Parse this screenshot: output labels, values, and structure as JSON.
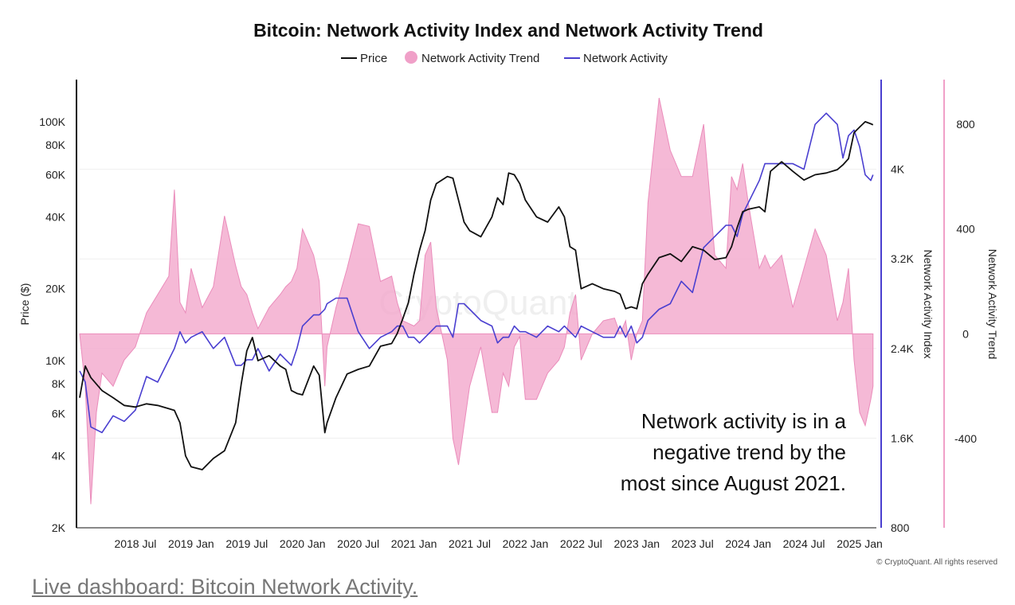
{
  "chart_data": {
    "type": "line",
    "title": "Bitcoin: Network Activity Index and Network Activity Trend",
    "legend": {
      "placement": "top-center",
      "items": [
        {
          "name": "Price",
          "symbol": "line",
          "color": "#111111"
        },
        {
          "name": "Network Activity Trend",
          "symbol": "dot",
          "color": "#f0a0c8"
        },
        {
          "name": "Network Activity",
          "symbol": "line",
          "color": "#4a3fd0"
        }
      ]
    },
    "x_ticks": [
      "2018 Jul",
      "2019 Jan",
      "2019 Jul",
      "2020 Jan",
      "2020 Jul",
      "2021 Jan",
      "2021 Jul",
      "2022 Jan",
      "2022 Jul",
      "2023 Jan",
      "2023 Jul",
      "2024 Jan",
      "2024 Jul",
      "2025 Jan"
    ],
    "x_range": [
      2018.0,
      2025.15
    ],
    "left_axis": {
      "label": "Price ($)",
      "scale": "log",
      "range": [
        2000,
        150000
      ],
      "ticks": [
        "100K",
        "80K",
        "60K",
        "40K",
        "20K",
        "10K",
        "8K",
        "6K",
        "4K",
        "2K"
      ],
      "tick_values": [
        100000,
        80000,
        60000,
        40000,
        20000,
        10000,
        8000,
        6000,
        4000,
        2000
      ]
    },
    "right_axis_1": {
      "label": "Network Activity Index",
      "range": [
        800,
        4800
      ],
      "ticks": [
        "4K",
        "3.2K",
        "2.4K",
        "1.6K",
        "800"
      ],
      "tick_values": [
        4000,
        3200,
        2400,
        1600,
        800
      ],
      "color": "#4a3fd0"
    },
    "right_axis_2": {
      "label": "Network Activity Trend",
      "range": [
        -740,
        970
      ],
      "ticks": [
        "800",
        "400",
        "0",
        "-400"
      ],
      "tick_values": [
        800,
        400,
        0,
        -400
      ],
      "color": "#f0a0c8"
    },
    "series": [
      {
        "name": "Price",
        "axis": "left",
        "color": "#111111",
        "x": [
          2018.0,
          2018.05,
          2018.1,
          2018.2,
          2018.3,
          2018.4,
          2018.5,
          2018.6,
          2018.7,
          2018.8,
          2018.85,
          2018.9,
          2018.95,
          2019.0,
          2019.1,
          2019.2,
          2019.3,
          2019.4,
          2019.45,
          2019.5,
          2019.55,
          2019.6,
          2019.7,
          2019.8,
          2019.85,
          2019.9,
          2019.95,
          2020.0,
          2020.1,
          2020.15,
          2020.2,
          2020.22,
          2020.3,
          2020.4,
          2020.5,
          2020.6,
          2020.7,
          2020.8,
          2020.85,
          2020.9,
          2020.95,
          2021.0,
          2021.05,
          2021.1,
          2021.15,
          2021.2,
          2021.3,
          2021.35,
          2021.4,
          2021.45,
          2021.5,
          2021.6,
          2021.7,
          2021.75,
          2021.8,
          2021.85,
          2021.9,
          2021.95,
          2022.0,
          2022.1,
          2022.2,
          2022.3,
          2022.35,
          2022.4,
          2022.45,
          2022.5,
          2022.6,
          2022.7,
          2022.8,
          2022.85,
          2022.9,
          2022.95,
          2023.0,
          2023.05,
          2023.1,
          2023.2,
          2023.3,
          2023.4,
          2023.5,
          2023.6,
          2023.7,
          2023.8,
          2023.85,
          2023.9,
          2023.95,
          2024.0,
          2024.1,
          2024.15,
          2024.2,
          2024.3,
          2024.4,
          2024.5,
          2024.6,
          2024.7,
          2024.8,
          2024.85,
          2024.9,
          2024.95,
          2025.0,
          2025.05,
          2025.1,
          2025.12
        ],
        "y": [
          7000,
          9500,
          8500,
          7500,
          7000,
          6500,
          6400,
          6600,
          6500,
          6300,
          6200,
          5500,
          4000,
          3600,
          3500,
          3900,
          4200,
          5500,
          8000,
          11000,
          12500,
          10000,
          10500,
          9500,
          9200,
          7500,
          7300,
          7200,
          9500,
          8700,
          5000,
          5500,
          7000,
          8800,
          9200,
          9500,
          11500,
          11800,
          13000,
          15000,
          17500,
          23000,
          29000,
          35000,
          47000,
          55000,
          59000,
          58000,
          47000,
          38000,
          35000,
          33000,
          40000,
          48000,
          45000,
          61000,
          60000,
          55000,
          47000,
          40000,
          38000,
          44000,
          40000,
          30000,
          29000,
          20000,
          21000,
          20000,
          19500,
          19000,
          16500,
          16800,
          16500,
          21000,
          23000,
          27000,
          28000,
          26000,
          30000,
          29000,
          26500,
          27000,
          30000,
          36000,
          42000,
          43000,
          44000,
          42000,
          62000,
          68000,
          62000,
          57000,
          60000,
          61000,
          63000,
          66000,
          70000,
          90000,
          95000,
          100000,
          98000,
          97000
        ],
        "y_labels": []
      },
      {
        "name": "Network Activity",
        "axis": "right_1",
        "color": "#4a3fd0",
        "x": [
          2018.0,
          2018.05,
          2018.1,
          2018.2,
          2018.3,
          2018.4,
          2018.5,
          2018.6,
          2018.7,
          2018.8,
          2018.85,
          2018.9,
          2018.95,
          2019.0,
          2019.1,
          2019.2,
          2019.3,
          2019.4,
          2019.45,
          2019.5,
          2019.55,
          2019.6,
          2019.7,
          2019.8,
          2019.85,
          2019.9,
          2019.95,
          2020.0,
          2020.1,
          2020.15,
          2020.2,
          2020.22,
          2020.3,
          2020.4,
          2020.5,
          2020.6,
          2020.7,
          2020.8,
          2020.85,
          2020.9,
          2020.95,
          2021.0,
          2021.05,
          2021.1,
          2021.15,
          2021.2,
          2021.3,
          2021.35,
          2021.4,
          2021.45,
          2021.5,
          2021.6,
          2021.7,
          2021.75,
          2021.8,
          2021.85,
          2021.9,
          2021.95,
          2022.0,
          2022.1,
          2022.2,
          2022.3,
          2022.35,
          2022.4,
          2022.45,
          2022.5,
          2022.6,
          2022.7,
          2022.8,
          2022.85,
          2022.9,
          2022.95,
          2023.0,
          2023.05,
          2023.1,
          2023.2,
          2023.3,
          2023.4,
          2023.5,
          2023.6,
          2023.7,
          2023.8,
          2023.85,
          2023.9,
          2023.95,
          2024.0,
          2024.1,
          2024.15,
          2024.2,
          2024.3,
          2024.4,
          2024.5,
          2024.6,
          2024.7,
          2024.8,
          2024.85,
          2024.9,
          2024.95,
          2025.0,
          2025.05,
          2025.1,
          2025.12
        ],
        "y": [
          2200,
          2100,
          1700,
          1650,
          1800,
          1750,
          1850,
          2150,
          2100,
          2300,
          2400,
          2550,
          2450,
          2500,
          2550,
          2400,
          2500,
          2250,
          2250,
          2300,
          2300,
          2400,
          2200,
          2350,
          2300,
          2250,
          2400,
          2600,
          2700,
          2700,
          2750,
          2800,
          2850,
          2850,
          2550,
          2400,
          2500,
          2550,
          2600,
          2600,
          2500,
          2500,
          2450,
          2500,
          2550,
          2600,
          2600,
          2500,
          2800,
          2800,
          2750,
          2650,
          2600,
          2450,
          2500,
          2500,
          2600,
          2550,
          2550,
          2500,
          2600,
          2550,
          2600,
          2550,
          2500,
          2600,
          2550,
          2500,
          2500,
          2600,
          2500,
          2600,
          2450,
          2500,
          2650,
          2750,
          2800,
          3000,
          2900,
          3300,
          3400,
          3500,
          3500,
          3400,
          3600,
          3700,
          3900,
          4050,
          4050,
          4050,
          4050,
          4000,
          4400,
          4500,
          4400,
          4100,
          4300,
          4350,
          4200,
          3950,
          3900,
          3950
        ]
      },
      {
        "name": "Network Activity Trend",
        "axis": "right_2",
        "color": "#f0a0c8",
        "x": [
          2018.0,
          2018.05,
          2018.1,
          2018.15,
          2018.2,
          2018.3,
          2018.4,
          2018.5,
          2018.6,
          2018.7,
          2018.8,
          2018.85,
          2018.9,
          2018.95,
          2019.0,
          2019.1,
          2019.2,
          2019.3,
          2019.4,
          2019.45,
          2019.5,
          2019.55,
          2019.6,
          2019.7,
          2019.8,
          2019.85,
          2019.9,
          2019.95,
          2020.0,
          2020.1,
          2020.15,
          2020.2,
          2020.22,
          2020.3,
          2020.4,
          2020.5,
          2020.6,
          2020.7,
          2020.8,
          2020.85,
          2020.9,
          2020.95,
          2021.0,
          2021.05,
          2021.1,
          2021.15,
          2021.2,
          2021.3,
          2021.35,
          2021.4,
          2021.45,
          2021.5,
          2021.6,
          2021.7,
          2021.75,
          2021.8,
          2021.85,
          2021.9,
          2021.95,
          2022.0,
          2022.1,
          2022.2,
          2022.3,
          2022.35,
          2022.4,
          2022.45,
          2022.5,
          2022.6,
          2022.7,
          2022.8,
          2022.85,
          2022.9,
          2022.95,
          2023.0,
          2023.05,
          2023.1,
          2023.2,
          2023.3,
          2023.4,
          2023.5,
          2023.6,
          2023.7,
          2023.8,
          2023.85,
          2023.9,
          2023.95,
          2024.0,
          2024.1,
          2024.15,
          2024.2,
          2024.3,
          2024.4,
          2024.5,
          2024.6,
          2024.7,
          2024.8,
          2024.85,
          2024.9,
          2024.95,
          2025.0,
          2025.05,
          2025.1,
          2025.12
        ],
        "y": [
          0,
          -200,
          -650,
          -300,
          -150,
          -200,
          -100,
          -50,
          80,
          150,
          220,
          550,
          120,
          80,
          250,
          100,
          180,
          450,
          260,
          180,
          150,
          80,
          20,
          100,
          150,
          180,
          200,
          250,
          400,
          300,
          200,
          -200,
          -50,
          100,
          250,
          420,
          410,
          200,
          220,
          120,
          50,
          40,
          30,
          50,
          300,
          350,
          100,
          -100,
          -400,
          -500,
          -350,
          -200,
          -50,
          -300,
          -300,
          -150,
          -200,
          -50,
          -10,
          -250,
          -250,
          -150,
          -100,
          -50,
          80,
          150,
          -100,
          0,
          50,
          60,
          0,
          50,
          -100,
          0,
          50,
          500,
          900,
          700,
          600,
          600,
          800,
          300,
          250,
          600,
          550,
          650,
          500,
          250,
          300,
          250,
          300,
          100,
          250,
          400,
          300,
          50,
          120,
          250,
          -100,
          -300,
          -350,
          -250,
          -200
        ]
      }
    ],
    "annotation": [
      "Network activity is in a",
      "negative trend by the",
      "most since August 2021."
    ],
    "watermark": "CryptoQuant",
    "copyright": "© CryptoQuant. All rights reserved"
  },
  "footer": {
    "link_text": "Live dashboard: Bitcoin Network Activity."
  }
}
